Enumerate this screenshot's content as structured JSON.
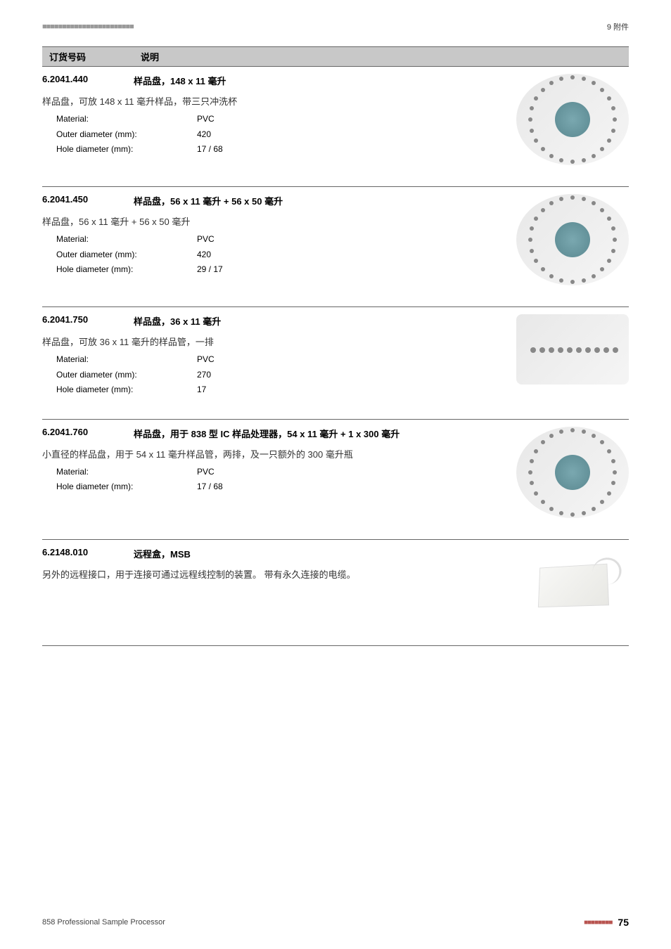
{
  "header": {
    "dashes": "■■■■■■■■■■■■■■■■■■■■■■■",
    "section": "9 附件"
  },
  "columnsHeader": {
    "code": "订货号码",
    "desc": "说明"
  },
  "products": [
    {
      "code": "6.2041.440",
      "name": "样品盘，148 x 11 毫升",
      "desc": "样品盘，可放 148 x 11 毫升样品，带三只冲洗杯",
      "specs": [
        {
          "label": "Material:",
          "value": "PVC"
        },
        {
          "label": "Outer diameter (mm):",
          "value": "420"
        },
        {
          "label": "Hole diameter (mm):",
          "value": "17 / 68"
        }
      ],
      "imageType": "round-rack"
    },
    {
      "code": "6.2041.450",
      "name": "样品盘，56 x 11 毫升 + 56 x 50 毫升",
      "desc": "样品盘，56 x 11 毫升 + 56 x 50 毫升",
      "specs": [
        {
          "label": "Material:",
          "value": "PVC"
        },
        {
          "label": "Outer diameter (mm):",
          "value": "420"
        },
        {
          "label": "Hole diameter (mm):",
          "value": "29 / 17"
        }
      ],
      "imageType": "round-rack"
    },
    {
      "code": "6.2041.750",
      "name": "样品盘，36 x 11 毫升",
      "desc": "样品盘，可放 36 x 11 毫升的样品管，一排",
      "specs": [
        {
          "label": "Material:",
          "value": "PVC"
        },
        {
          "label": "Outer diameter (mm):",
          "value": "270"
        },
        {
          "label": "Hole diameter (mm):",
          "value": "17"
        }
      ],
      "imageType": "rect"
    },
    {
      "code": "6.2041.760",
      "name": "样品盘，用于 838 型 IC 样品处理器，54 x 11 毫升 + 1 x 300 毫升",
      "desc": "小直径的样品盘，用于 54 x 11 毫升样品管，两排，及一只额外的 300 毫升瓶",
      "specs": [
        {
          "label": "Material:",
          "value": "PVC"
        },
        {
          "label": "Hole diameter (mm):",
          "value": "17 / 68"
        }
      ],
      "imageType": "round-rack"
    },
    {
      "code": "6.2148.010",
      "name": "远程盒，MSB",
      "desc": "另外的远程接口，用于连接可通过远程线控制的装置。 带有永久连接的电缆。",
      "specs": [],
      "imageType": "box"
    }
  ],
  "footer": {
    "title": "858 Professional Sample Processor",
    "dashes": "■■■■■■■■",
    "pageNum": "75"
  }
}
